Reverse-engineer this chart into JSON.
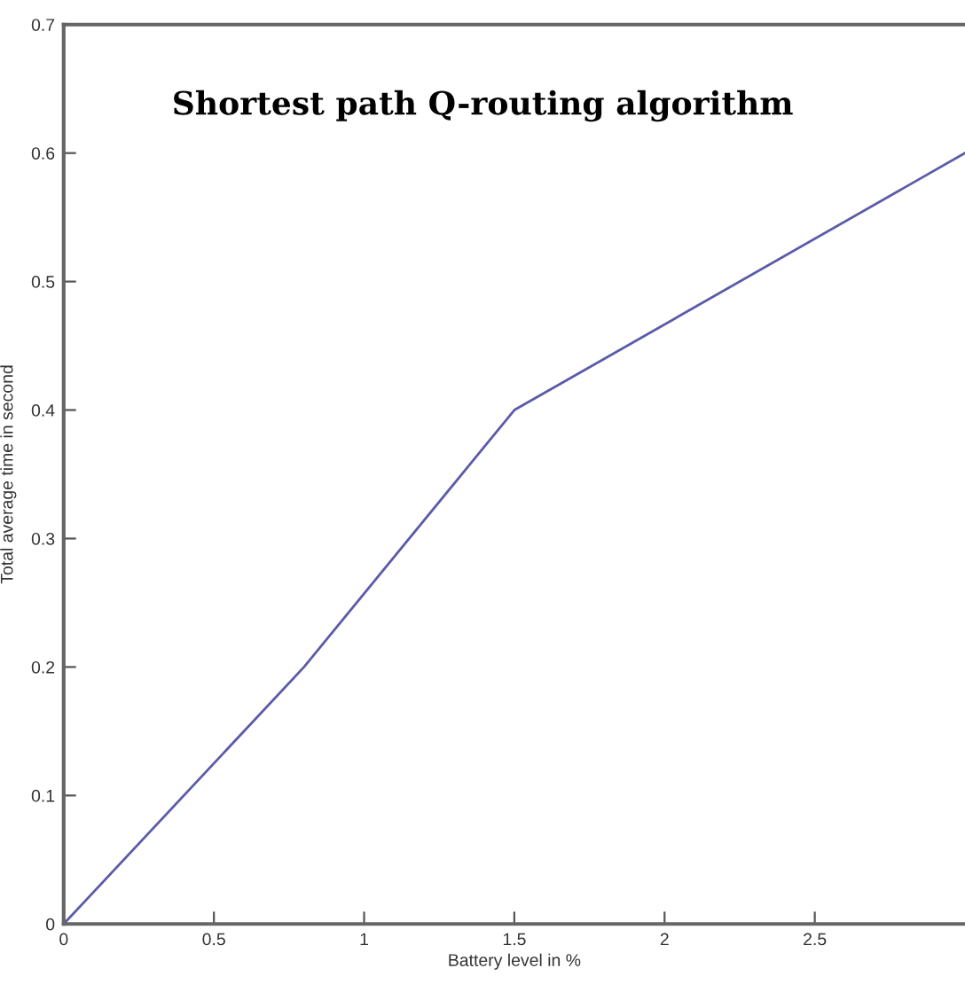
{
  "chart_data": {
    "type": "line",
    "title": "Shortest path Q-routing algorithm",
    "xlabel": "Battery level in %",
    "ylabel": "Total average time in second",
    "x": [
      0,
      0.8,
      1.5,
      3
    ],
    "series": [
      {
        "color": "#5b5ba8",
        "values": [
          0,
          0.2,
          0.4,
          0.6
        ]
      }
    ],
    "xlim": [
      0,
      3
    ],
    "xticks": [
      0,
      0.5,
      1,
      1.5,
      2,
      2.5
    ],
    "ylim": [
      0,
      0.7
    ],
    "yticks": [
      0,
      0.1,
      0.2,
      0.3,
      0.4,
      0.5,
      0.6,
      0.7
    ],
    "grid": false,
    "legend": false,
    "marker": "none",
    "line_style": "solid"
  }
}
